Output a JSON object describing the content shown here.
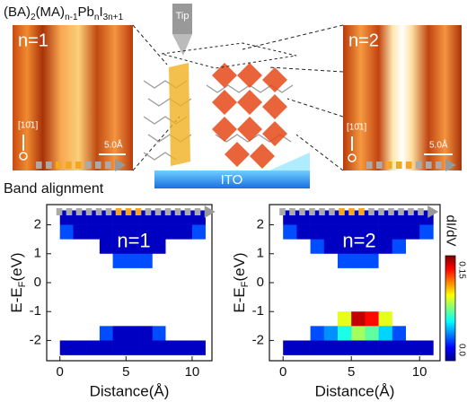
{
  "figure": {
    "formula": [
      "(BA)",
      "2",
      "(MA)",
      "n-1",
      "Pb",
      "n",
      "I",
      "3n+1"
    ],
    "tip": "Tip",
    "images": [
      {
        "label": "n=1",
        "direction": "[10̄1]",
        "scale": "5.0Å"
      },
      {
        "label": "n=2",
        "direction": "[10̄1]",
        "scale": "5.0Å"
      }
    ],
    "substrate": "ITO",
    "section": "Band alignment"
  },
  "chart_data": [
    {
      "type": "heatmap",
      "label": "n=1",
      "xlabel": "Distance(Å)",
      "ylabel": [
        "E-E",
        "F",
        "(eV)"
      ],
      "xlim": [
        -1,
        11.5
      ],
      "ylim": [
        -2.7,
        2.7
      ],
      "xticks": [
        0,
        5,
        10
      ],
      "yticks": [
        2,
        1,
        0,
        -1,
        -2
      ],
      "xbins": [
        0,
        1,
        2,
        3,
        4,
        5,
        6,
        7,
        8,
        9,
        10,
        11
      ],
      "ybins": [
        2.5,
        2.0,
        1.5,
        1.0,
        0.5,
        0,
        -0.5,
        -1.0,
        -1.5,
        -2.0,
        -2.5
      ],
      "clim": [
        0,
        0.15
      ],
      "values": [
        [
          0.01,
          0.01,
          0.01,
          0.01,
          0.01,
          0.01,
          0.01,
          0.01,
          0.01,
          0.01,
          0.01
        ],
        [
          0.03,
          0.01,
          0.01,
          0.01,
          0.01,
          0.01,
          0.01,
          0.01,
          0.01,
          0.01,
          0.03
        ],
        [
          0,
          0,
          0,
          0.01,
          0.01,
          0.01,
          0.01,
          0.01,
          0,
          0,
          0
        ],
        [
          0,
          0,
          0,
          0,
          0.03,
          0.03,
          0.03,
          0,
          0,
          0,
          0
        ],
        [
          0,
          0,
          0,
          0,
          0,
          0,
          0,
          0,
          0,
          0,
          0
        ],
        [
          0,
          0,
          0,
          0,
          0,
          0,
          0,
          0,
          0,
          0,
          0
        ],
        [
          0,
          0,
          0,
          0,
          0,
          0,
          0,
          0,
          0,
          0,
          0
        ],
        [
          0,
          0,
          0,
          0,
          0,
          0,
          0,
          0,
          0,
          0,
          0
        ],
        [
          0,
          0,
          0,
          0.03,
          0.01,
          0.01,
          0.01,
          0.03,
          0,
          0,
          0
        ],
        [
          0.01,
          0.01,
          0.01,
          0.01,
          0.01,
          0.01,
          0.01,
          0.01,
          0.01,
          0.01,
          0.01
        ]
      ]
    },
    {
      "type": "heatmap",
      "label": "n=2",
      "xlabel": "Distance(Å)",
      "ylabel": [
        "E-E",
        "F",
        "(eV)"
      ],
      "xlim": [
        -1,
        11.5
      ],
      "ylim": [
        -2.7,
        2.7
      ],
      "xticks": [
        0,
        5,
        10
      ],
      "yticks": [
        2,
        1,
        0,
        -1,
        -2
      ],
      "xbins": [
        0,
        1,
        2,
        3,
        4,
        5,
        6,
        7,
        8,
        9,
        10,
        11
      ],
      "ybins": [
        2.5,
        2.0,
        1.5,
        1.0,
        0.5,
        0,
        -0.5,
        -1.0,
        -1.5,
        -2.0,
        -2.5
      ],
      "clim": [
        0,
        0.15
      ],
      "colorbar": {
        "label": "dI/dV",
        "ticks": [
          0.15,
          {
            "value": 0,
            "label": "0.0"
          }
        ]
      },
      "values": [
        [
          0.01,
          0.01,
          0.01,
          0.01,
          0.01,
          0.01,
          0.01,
          0.01,
          0.01,
          0.01,
          0.01
        ],
        [
          0.03,
          0.01,
          0.01,
          0.01,
          0.01,
          0.01,
          0.01,
          0.01,
          0.01,
          0.01,
          0.03
        ],
        [
          0,
          0,
          0.03,
          0.01,
          0.01,
          0.01,
          0.01,
          0.01,
          0.03,
          0,
          0
        ],
        [
          0,
          0,
          0,
          0,
          0.03,
          0.03,
          0.03,
          0,
          0,
          0,
          0
        ],
        [
          0,
          0,
          0,
          0,
          0,
          0,
          0,
          0,
          0,
          0,
          0
        ],
        [
          0,
          0,
          0,
          0,
          0,
          0,
          0,
          0,
          0,
          0,
          0
        ],
        [
          0,
          0,
          0,
          0,
          0,
          0,
          0,
          0,
          0,
          0,
          0
        ],
        [
          0,
          0,
          0,
          0,
          0.09,
          0.14,
          0.13,
          0.09,
          0,
          0,
          0
        ],
        [
          0,
          0,
          0.03,
          0.04,
          0.06,
          0.08,
          0.07,
          0.05,
          0.03,
          0,
          0
        ],
        [
          0.01,
          0.01,
          0.01,
          0.01,
          0.01,
          0.01,
          0.01,
          0.01,
          0.01,
          0.01,
          0.01
        ]
      ]
    }
  ]
}
